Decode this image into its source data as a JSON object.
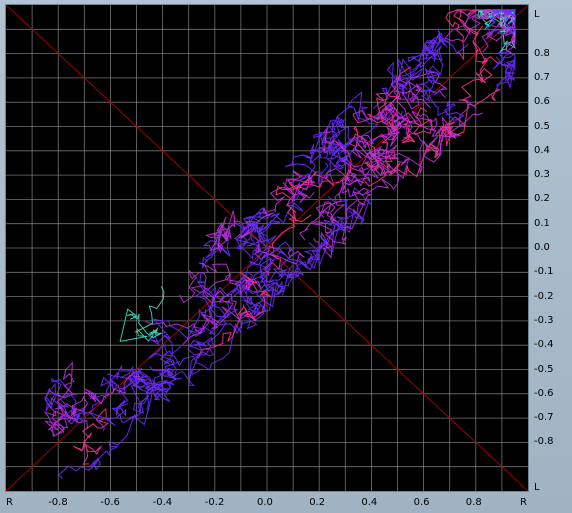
{
  "window": {
    "title": ""
  },
  "axes": {
    "x_labels": [
      "R",
      "-0.8",
      "-0.6",
      "-0.4",
      "-0.2",
      "0.0",
      "0.2",
      "0.4",
      "0.6",
      "0.8",
      "R"
    ],
    "y_labels": [
      "L",
      "0.8",
      "0.7",
      "0.6",
      "0.5",
      "0.4",
      "0.3",
      "0.2",
      "0.1",
      "0.0",
      "-0.1",
      "-0.2",
      "-0.3",
      "-0.4",
      "-0.5",
      "-0.6",
      "-0.7",
      "-0.8",
      "L"
    ]
  },
  "colors": {
    "background": "#000000",
    "grid": "#9a9a9a",
    "diagonal": "#a00000",
    "trace_primary": "#6a2cff",
    "trace_secondary": "#c030e0",
    "trace_accent": "#40e0c0",
    "trace_highlight": "#ff3090"
  },
  "chart_data": {
    "type": "scatter",
    "title": "",
    "xlabel": "",
    "ylabel": "",
    "xlim": [
      -1,
      1
    ],
    "ylim": [
      -1,
      1
    ],
    "grid": true,
    "description_shape": "elongated cloud of connected traces along the L=R diagonal",
    "trend": {
      "slope": 1.0,
      "intercept": 0.0,
      "spread": 0.18,
      "x_range": [
        -0.85,
        0.95
      ]
    }
  }
}
